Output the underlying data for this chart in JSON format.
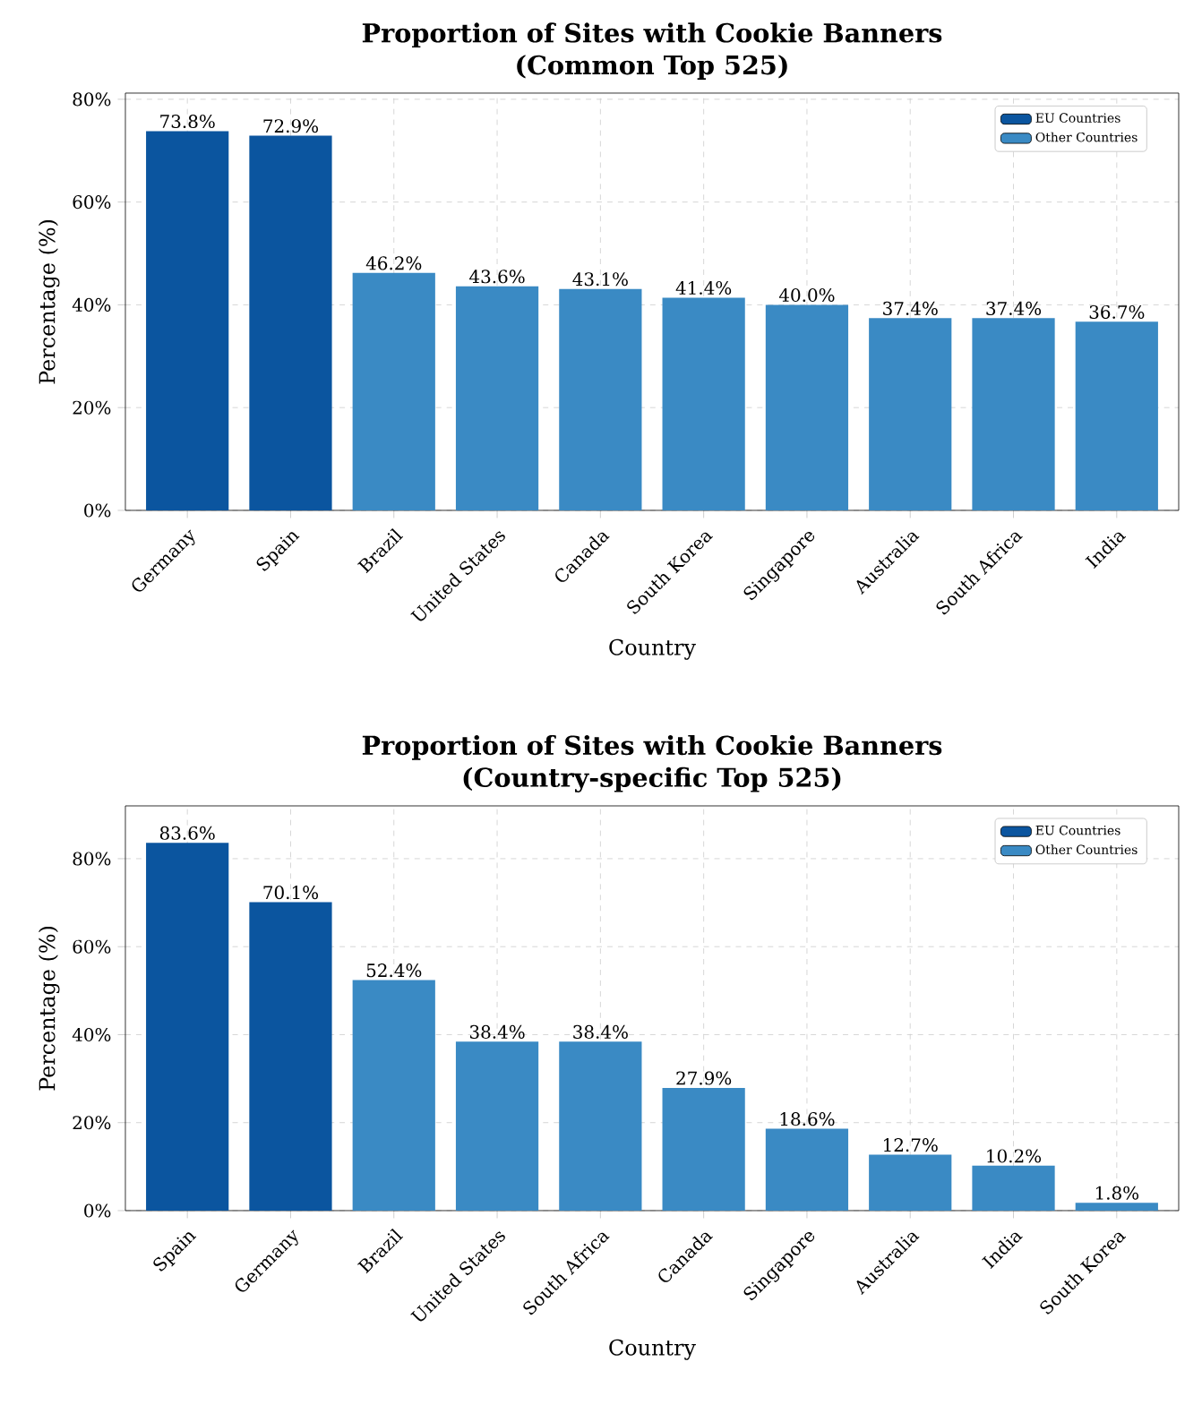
{
  "chart_data": [
    {
      "type": "bar",
      "title": "Proportion of Sites with Cookie Banners",
      "subtitle": "(Common Top 525)",
      "xlabel": "Country",
      "ylabel": "Percentage (%)",
      "categories": [
        "Germany",
        "Spain",
        "Brazil",
        "United States",
        "Canada",
        "South Korea",
        "Singapore",
        "Australia",
        "South Africa",
        "India"
      ],
      "series": [
        {
          "name": "EU Countries",
          "color": "#0b559f",
          "values": [
            73.8,
            72.9,
            null,
            null,
            null,
            null,
            null,
            null,
            null,
            null
          ],
          "value_labels": [
            "73.8%",
            "72.9%",
            null,
            null,
            null,
            null,
            null,
            null,
            null,
            null
          ]
        },
        {
          "name": "Other Countries",
          "color": "#3a8ac4",
          "values": [
            null,
            null,
            46.2,
            43.6,
            43.1,
            41.4,
            40.0,
            37.4,
            37.4,
            36.7
          ],
          "value_labels": [
            null,
            null,
            "46.2%",
            "43.6%",
            "43.1%",
            "41.4%",
            "40.0%",
            "37.4%",
            "37.4%",
            "36.7%"
          ]
        }
      ],
      "ylim": [
        0,
        81.2
      ],
      "yticks": [
        {
          "value": 0,
          "label": "0%"
        },
        {
          "value": 20,
          "label": "20%"
        },
        {
          "value": 40,
          "label": "40%"
        },
        {
          "value": 60,
          "label": "60%"
        },
        {
          "value": 80,
          "label": "80%"
        }
      ],
      "grid": true,
      "legend": "top right"
    },
    {
      "type": "bar",
      "title": "Proportion of Sites with Cookie Banners",
      "subtitle": "(Country-specific Top 525)",
      "xlabel": "Country",
      "ylabel": "Percentage (%)",
      "categories": [
        "Spain",
        "Germany",
        "Brazil",
        "United States",
        "South Africa",
        "Canada",
        "Singapore",
        "Australia",
        "India",
        "South Korea"
      ],
      "series": [
        {
          "name": "EU Countries",
          "color": "#0b559f",
          "values": [
            83.6,
            70.1,
            null,
            null,
            null,
            null,
            null,
            null,
            null,
            null
          ],
          "value_labels": [
            "83.6%",
            "70.1%",
            null,
            null,
            null,
            null,
            null,
            null,
            null,
            null
          ]
        },
        {
          "name": "Other Countries",
          "color": "#3a8ac4",
          "values": [
            null,
            null,
            52.4,
            38.4,
            38.4,
            27.9,
            18.6,
            12.7,
            10.2,
            1.8
          ],
          "value_labels": [
            null,
            null,
            "52.4%",
            "38.4%",
            "38.4%",
            "27.9%",
            "18.6%",
            "12.7%",
            "10.2%",
            "1.8%"
          ]
        }
      ],
      "ylim": [
        0,
        92
      ],
      "yticks": [
        {
          "value": 0,
          "label": "0%"
        },
        {
          "value": 20,
          "label": "20%"
        },
        {
          "value": 40,
          "label": "40%"
        },
        {
          "value": 60,
          "label": "60%"
        },
        {
          "value": 80,
          "label": "80%"
        }
      ],
      "grid": true,
      "legend": "top right"
    }
  ]
}
